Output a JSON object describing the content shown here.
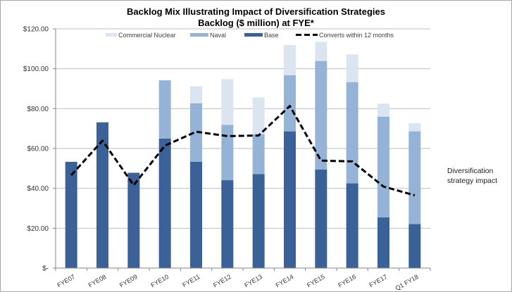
{
  "chart_data": {
    "type": "bar",
    "stacked": true,
    "title": "Backlog Mix Illustrating Impact of Diversification Strategies",
    "subtitle": "Backlog ($ million) at FYE*",
    "xlabel": "",
    "ylabel": "",
    "ylim": [
      0,
      120
    ],
    "yticks": [
      0,
      20,
      40,
      60,
      80,
      100,
      120
    ],
    "ytick_labels": [
      "$-",
      "$20.00",
      "$40.00",
      "$60.00",
      "$80.00",
      "$100.00",
      "$120.00"
    ],
    "grid": true,
    "legend_position": "top",
    "categories": [
      "FYE07",
      "FYE08",
      "FYE09",
      "FYE10",
      "FYE11",
      "FYE12",
      "FYE13",
      "FYE14",
      "FYE15",
      "FYE16",
      "FYE17",
      "Q1 FY18"
    ],
    "series": [
      {
        "name": "Base",
        "kind": "bar",
        "color": "#3A6298",
        "values": [
          53.3,
          73.1,
          47.8,
          65.0,
          53.3,
          44.1,
          47.2,
          68.6,
          49.4,
          42.5,
          25.4,
          22.1
        ]
      },
      {
        "name": "Naval",
        "kind": "bar",
        "color": "#95B3D7",
        "values": [
          0,
          0,
          0,
          29.2,
          29.4,
          27.8,
          20.0,
          28.2,
          54.5,
          50.8,
          50.5,
          46.5
        ]
      },
      {
        "name": "Commercial Nuclear",
        "kind": "bar",
        "color": "#DBE5F1",
        "values": [
          0,
          0,
          0,
          0,
          8.5,
          22.9,
          18.4,
          15.1,
          9.6,
          13.9,
          6.6,
          4.1
        ]
      },
      {
        "name": "Converts within 12 months",
        "kind": "line",
        "style": "dashed",
        "color": "#000000",
        "values": [
          46.6,
          63.9,
          41.6,
          61.4,
          68.4,
          66.2,
          66.5,
          81.3,
          53.9,
          53.5,
          40.9,
          36.5
        ]
      }
    ],
    "legend_order": [
      "Commercial Nuclear",
      "Naval",
      "Base",
      "Converts within 12 months"
    ],
    "annotation": "Diversification strategy impact"
  }
}
